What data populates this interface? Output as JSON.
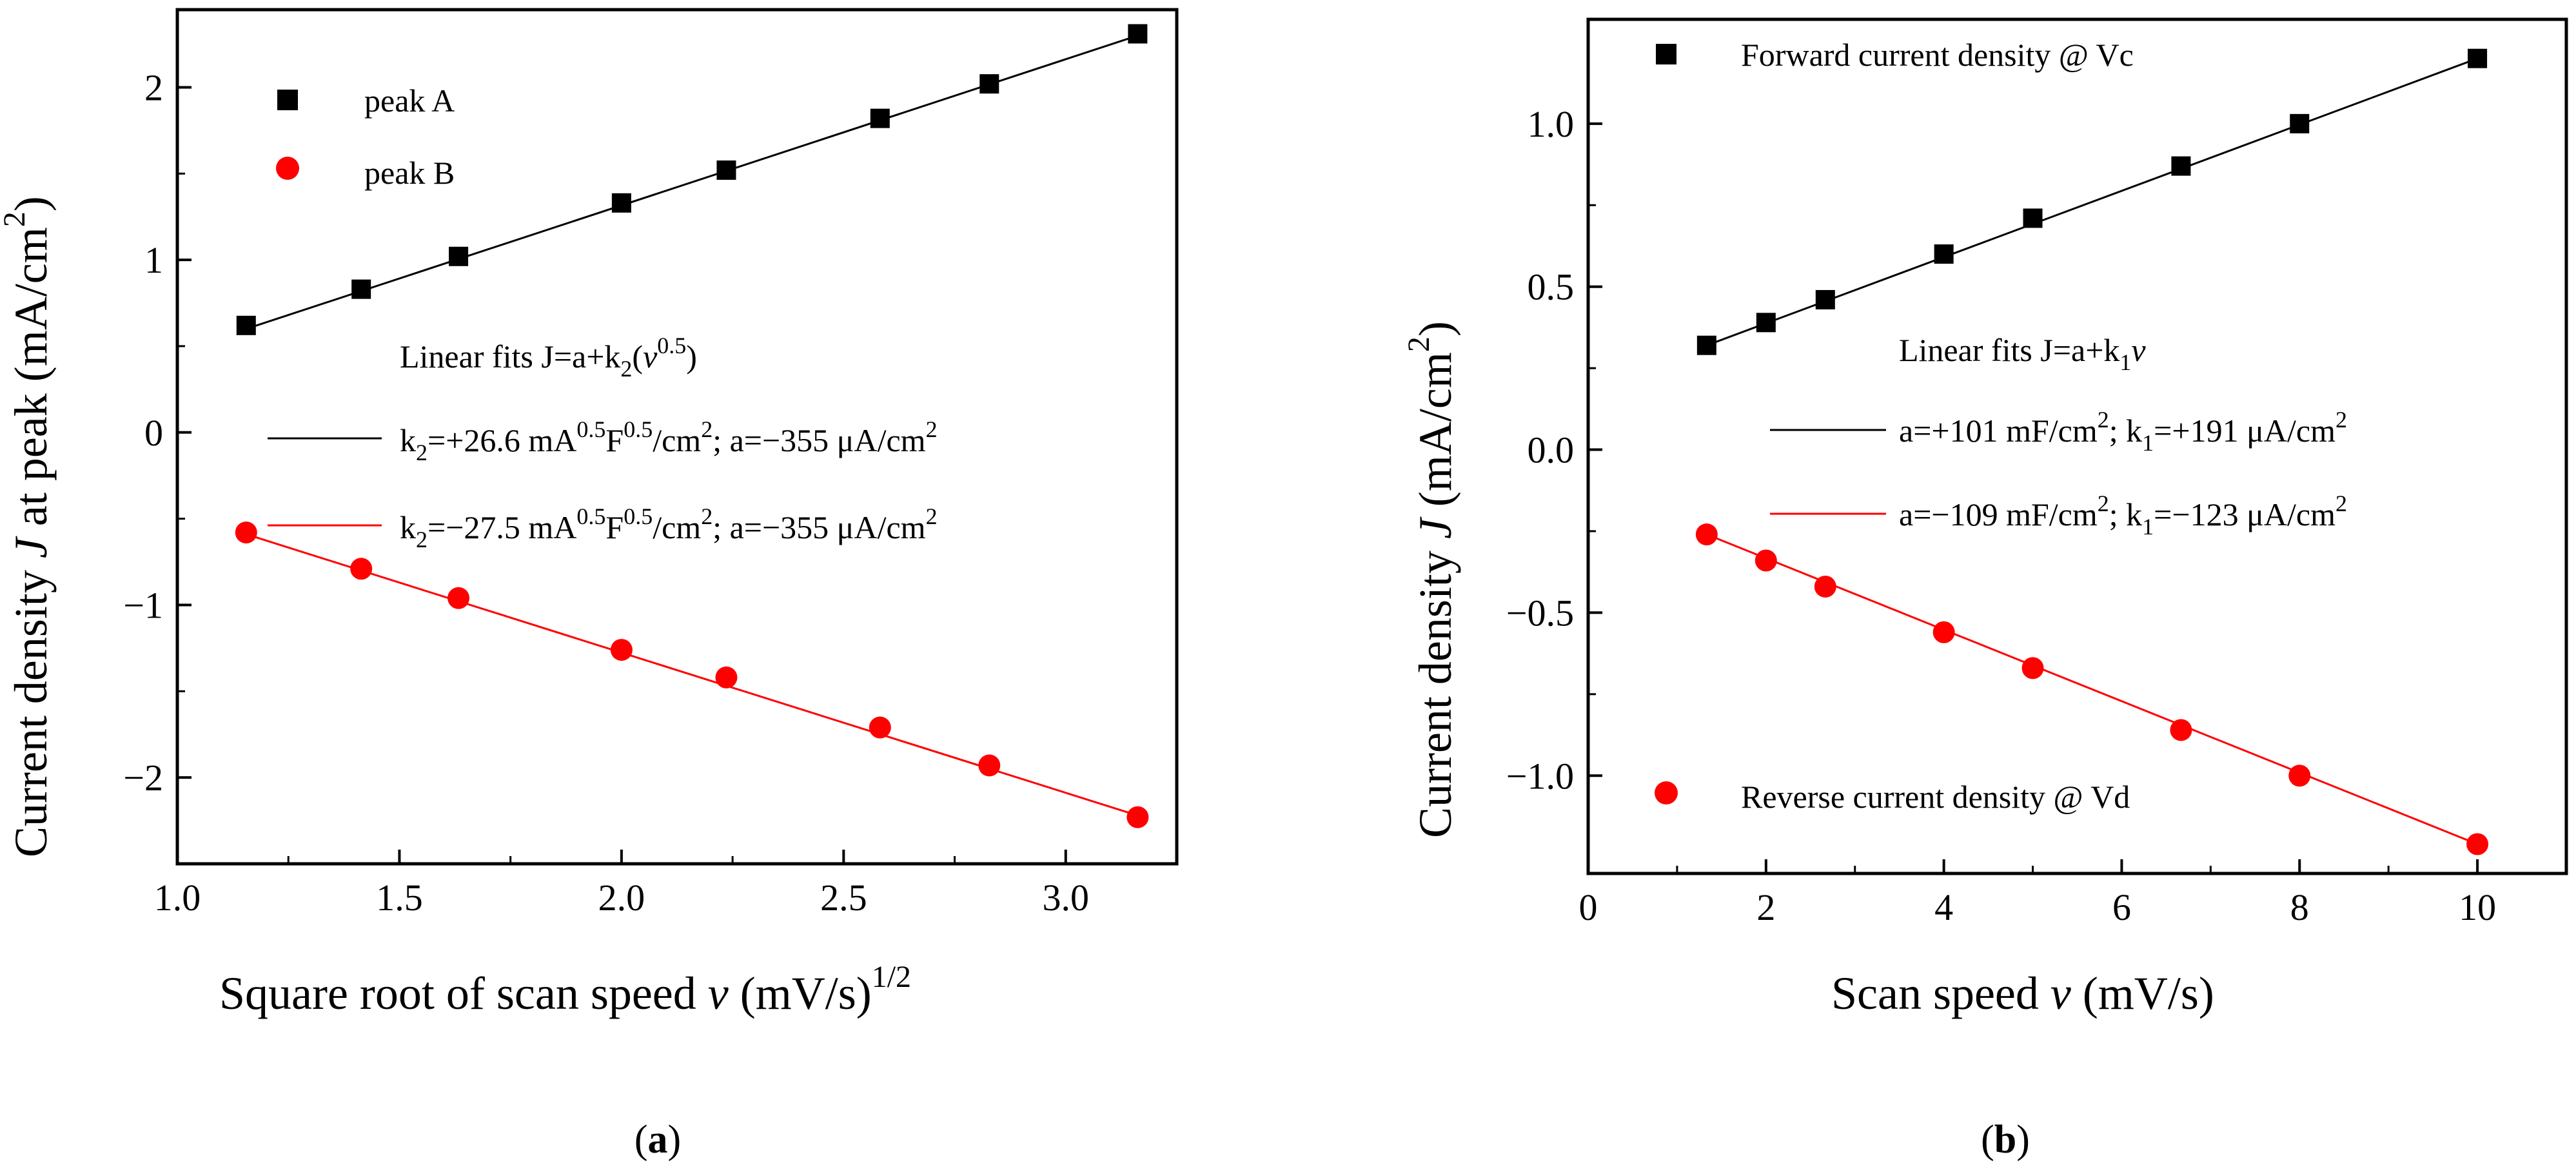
{
  "colors": {
    "series_black": "#000000",
    "series_red": "#ff0000",
    "axis": "#000000"
  },
  "chart_data": [
    {
      "type": "scatter",
      "panel": "a",
      "caption_open": "(",
      "caption_letter": "a",
      "caption_close": ")",
      "xlabel_main": "Square root of scan speed ",
      "xlabel_var": "v",
      "xlabel_unit": " (mV/s)",
      "xlabel_exp": "1/2",
      "ylabel_main": "Current density ",
      "ylabel_var": "J",
      "ylabel_rest": " at peak (mA/cm",
      "ylabel_exp": "2",
      "ylabel_close": ")",
      "xlim": [
        1.0,
        3.25
      ],
      "ylim": [
        -2.5,
        2.45
      ],
      "xticks": [
        1.0,
        1.5,
        2.0,
        2.5,
        3.0
      ],
      "xtick_labels": [
        "1.0",
        "1.5",
        "2.0",
        "2.5",
        "3.0"
      ],
      "yticks": [
        -2,
        -1,
        0,
        1,
        2
      ],
      "ytick_labels": [
        "−2",
        "−1",
        "0",
        "1",
        "2"
      ],
      "series": [
        {
          "name": "peak A",
          "marker": "square",
          "color": "#000000",
          "x": [
            1.155,
            1.414,
            1.633,
            2.0,
            2.236,
            2.582,
            2.828,
            3.162
          ],
          "y": [
            0.62,
            0.83,
            1.02,
            1.33,
            1.52,
            1.82,
            2.02,
            2.31
          ],
          "fit": [
            0.6,
            2.3
          ]
        },
        {
          "name": "peak B",
          "marker": "circle",
          "color": "#ff0000",
          "x": [
            1.155,
            1.414,
            1.633,
            2.0,
            2.236,
            2.582,
            2.828,
            3.162
          ],
          "y": [
            -0.58,
            -0.79,
            -0.96,
            -1.26,
            -1.42,
            -1.71,
            -1.93,
            -2.23
          ],
          "fit": [
            -0.59,
            -2.22
          ]
        }
      ],
      "fits_title_main": "Linear fits J=a+k",
      "fits_title_sub": "2",
      "fits_title_open": "(",
      "fits_title_var": "v",
      "fits_title_exp": "0.5",
      "fits_title_close": ")",
      "fit_labels": [
        {
          "k": "k",
          "ksub": "2",
          "t1": "=+26.6 mA",
          "e1": "0.5",
          "t2": "F",
          "e2": "0.5",
          "t3": "/cm",
          "e3": "2",
          "t4": "; a=−355 μA/cm",
          "e4": "2"
        },
        {
          "k": "k",
          "ksub": "2",
          "t1": "=−27.5 mA",
          "e1": "0.5",
          "t2": "F",
          "e2": "0.5",
          "t3": "/cm",
          "e3": "2",
          "t4": "; a=−355 μA/cm",
          "e4": "2"
        }
      ]
    },
    {
      "type": "scatter",
      "panel": "b",
      "caption_open": "(",
      "caption_letter": "b",
      "caption_close": ")",
      "xlabel_main": "Scan speed ",
      "xlabel_var": "v",
      "xlabel_unit": " (mV/s)",
      "ylabel_main": "Current density ",
      "ylabel_var": "J",
      "ylabel_rest": " (mA/cm",
      "ylabel_exp": "2",
      "ylabel_close": ")",
      "xlim": [
        0,
        11
      ],
      "ylim": [
        -1.3,
        1.32
      ],
      "xticks": [
        0,
        2,
        4,
        6,
        8,
        10
      ],
      "xtick_labels": [
        "0",
        "2",
        "4",
        "6",
        "8",
        "10"
      ],
      "yticks": [
        -1.0,
        -0.5,
        0.0,
        0.5,
        1.0
      ],
      "ytick_labels": [
        "−1.0",
        "−0.5",
        "0.0",
        "0.5",
        "1.0"
      ],
      "series": [
        {
          "name": "Forward current density @ Vc",
          "marker": "square",
          "color": "#000000",
          "x": [
            1.333,
            2,
            2.667,
            4,
            5,
            6.667,
            8,
            10
          ],
          "y": [
            0.32,
            0.39,
            0.46,
            0.6,
            0.71,
            0.87,
            1.0,
            1.2
          ],
          "fit": [
            0.32,
            1.2
          ]
        },
        {
          "name": "Reverse current density @ Vd",
          "marker": "circle",
          "color": "#ff0000",
          "x": [
            1.333,
            2,
            2.667,
            4,
            5,
            6.667,
            8,
            10
          ],
          "y": [
            -0.26,
            -0.34,
            -0.42,
            -0.56,
            -0.67,
            -0.86,
            -1.0,
            -1.21
          ],
          "fit": [
            -0.26,
            -1.21
          ]
        }
      ],
      "fits_title_main": "Linear fits J=a+k",
      "fits_title_sub": "1",
      "fits_title_var": "v",
      "fit_labels": [
        {
          "t1": "a=+101 mF/cm",
          "e1": "2",
          "t2": "; k",
          "s2": "1",
          "t3": "=+191 μA/cm",
          "e3": "2"
        },
        {
          "t1": "a=−109 mF/cm",
          "e1": "2",
          "t2": "; k",
          "s2": "1",
          "t3": "=−123 μA/cm",
          "e3": "2"
        }
      ]
    }
  ]
}
